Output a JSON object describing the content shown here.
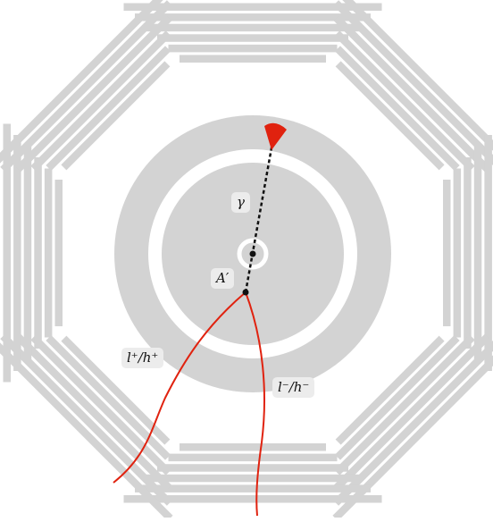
{
  "diagram": {
    "colors": {
      "detector": "#d3d3d3",
      "background": "#ffffff",
      "track": "#e0220f",
      "deposit": "#e0220f",
      "photon_line": "#111111",
      "label_bg": "#ececec"
    },
    "labels": {
      "photon": "γ",
      "dark_photon": "A′",
      "positive_track": "l⁺/h⁺",
      "negative_track": "l⁻/h⁻"
    },
    "particles": [
      {
        "name": "photon",
        "style": "dashed",
        "ends_in": "calorimeter-deposit"
      },
      {
        "name": "positive-track",
        "style": "curved",
        "charge": "+"
      },
      {
        "name": "negative-track",
        "style": "curved",
        "charge": "-"
      }
    ],
    "detector_layers": {
      "outer_octagon_segments": 8,
      "bars_per_segment": 6
    }
  }
}
